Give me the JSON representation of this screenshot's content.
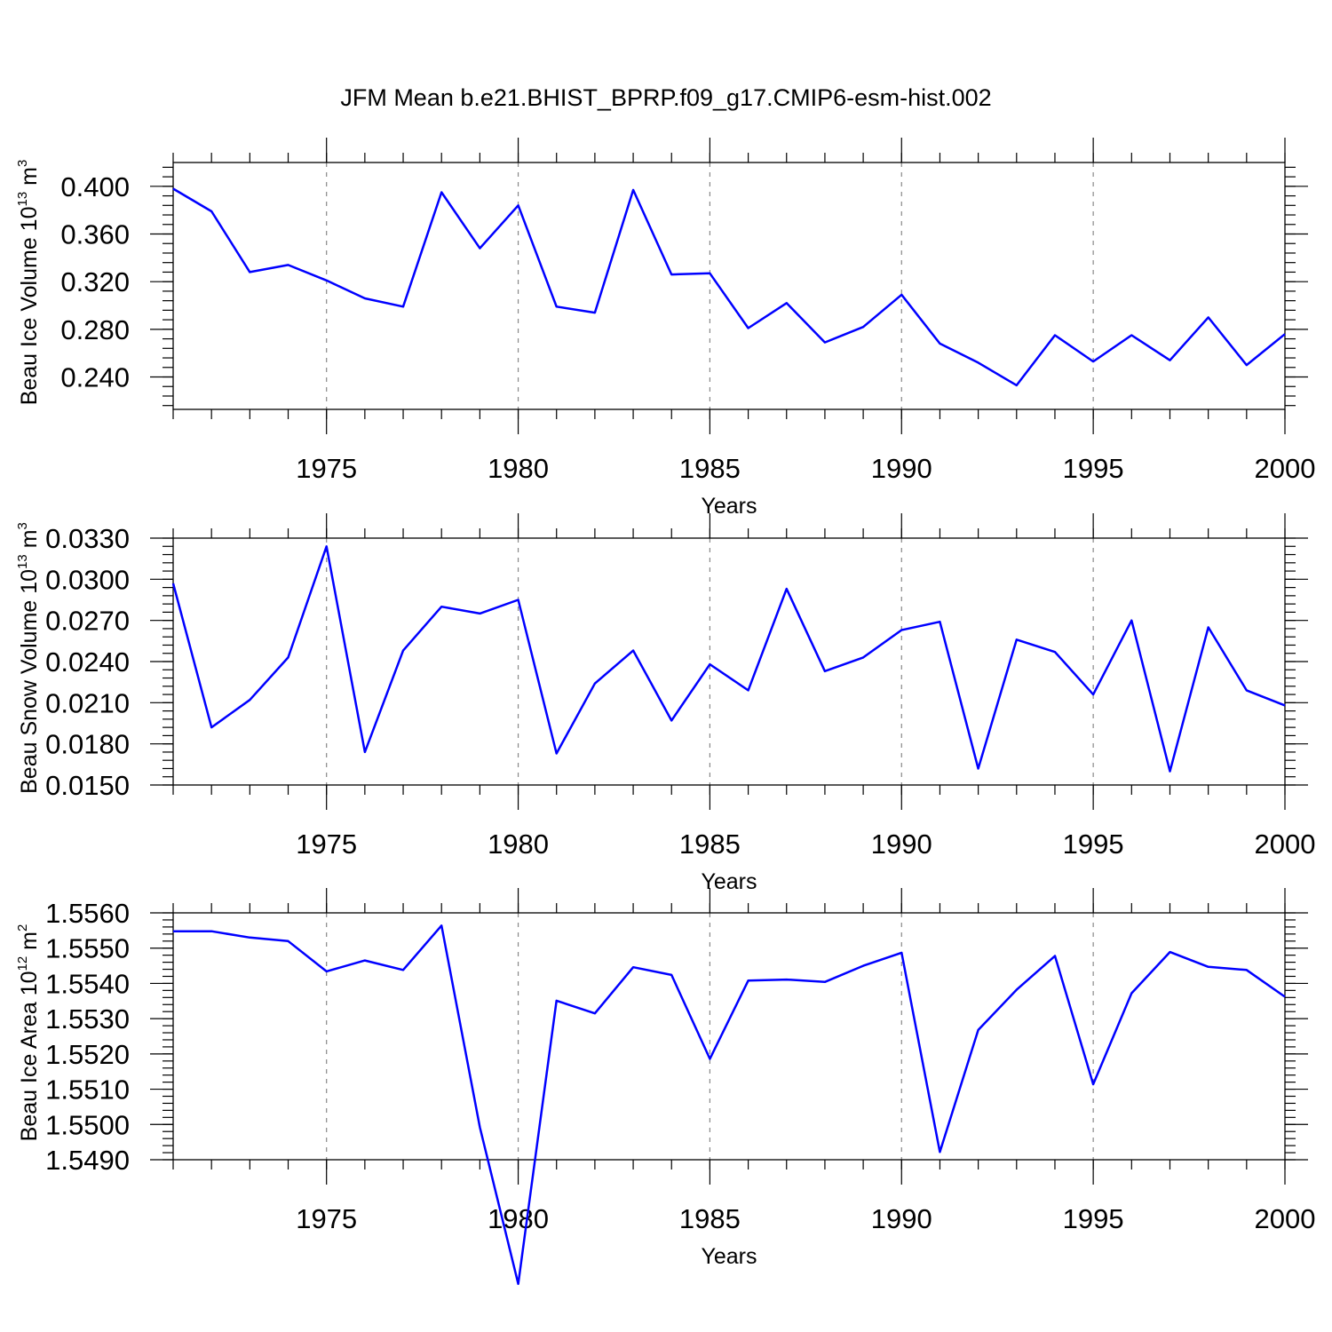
{
  "figure_title": "JFM Mean b.e21.BHIST_BPRP.f09_g17.CMIP6-esm-hist.002",
  "colors": {
    "line": "#0000ff",
    "frame": "#000000",
    "grid": "#888888"
  },
  "chart_data": [
    {
      "type": "line",
      "title": "JFM Mean b.e21.BHIST_BPRP.f09_g17.CMIP6-esm-hist.002",
      "ylabel_main": "Beau Ice Volume 10",
      "ylabel_exp": "13",
      "ylabel_unit": " m",
      "ylabel_unit_exp": "3",
      "xlabel": "Years",
      "xlim": [
        1971,
        2000
      ],
      "ylim": [
        0.2128,
        0.42
      ],
      "grid": "x-major-dashed",
      "yticks": [
        0.24,
        0.28,
        0.32,
        0.36,
        0.4
      ],
      "ytick_labels": [
        "0.240",
        "0.280",
        "0.320",
        "0.360",
        "0.400"
      ],
      "xticks": [
        1975,
        1980,
        1985,
        1990,
        1995,
        2000
      ],
      "xtick_labels": [
        "1975",
        "1980",
        "1985",
        "1990",
        "1995",
        "2000"
      ],
      "x": [
        1971,
        1972,
        1973,
        1974,
        1975,
        1976,
        1977,
        1978,
        1979,
        1980,
        1981,
        1982,
        1983,
        1984,
        1985,
        1986,
        1987,
        1988,
        1989,
        1990,
        1991,
        1992,
        1993,
        1994,
        1995,
        1996,
        1997,
        1998,
        1999,
        2000
      ],
      "values": [
        0.398,
        0.379,
        0.328,
        0.334,
        0.321,
        0.306,
        0.299,
        0.395,
        0.348,
        0.384,
        0.299,
        0.294,
        0.397,
        0.326,
        0.327,
        0.281,
        0.302,
        0.269,
        0.282,
        0.309,
        0.268,
        0.252,
        0.233,
        0.275,
        0.253,
        0.275,
        0.254,
        0.29,
        0.25,
        0.276
      ]
    },
    {
      "type": "line",
      "ylabel_main": "Beau Snow Volume 10",
      "ylabel_exp": "13",
      "ylabel_unit": " m",
      "ylabel_unit_exp": "3",
      "xlabel": "Years",
      "xlim": [
        1971,
        2000
      ],
      "ylim": [
        0.015,
        0.033
      ],
      "grid": "x-major-dashed",
      "yticks": [
        0.015,
        0.018,
        0.021,
        0.024,
        0.027,
        0.03,
        0.033
      ],
      "ytick_labels": [
        "0.0150",
        "0.0180",
        "0.0210",
        "0.0240",
        "0.0270",
        "0.0300",
        "0.0330"
      ],
      "xticks": [
        1975,
        1980,
        1985,
        1990,
        1995,
        2000
      ],
      "xtick_labels": [
        "1975",
        "1980",
        "1985",
        "1990",
        "1995",
        "2000"
      ],
      "x": [
        1971,
        1972,
        1973,
        1974,
        1975,
        1976,
        1977,
        1978,
        1979,
        1980,
        1981,
        1982,
        1983,
        1984,
        1985,
        1986,
        1987,
        1988,
        1989,
        1990,
        1991,
        1992,
        1993,
        1994,
        1995,
        1996,
        1997,
        1998,
        1999,
        2000
      ],
      "values": [
        0.0297,
        0.0192,
        0.0212,
        0.0243,
        0.0324,
        0.0174,
        0.0248,
        0.028,
        0.0275,
        0.0285,
        0.0173,
        0.0224,
        0.0248,
        0.0197,
        0.0238,
        0.0219,
        0.0293,
        0.0233,
        0.0243,
        0.0263,
        0.0269,
        0.0162,
        0.0256,
        0.0247,
        0.0216,
        0.027,
        0.016,
        0.0265,
        0.0219,
        0.0208
      ]
    },
    {
      "type": "line",
      "ylabel_main": "Beau Ice Area 10",
      "ylabel_exp": "12",
      "ylabel_unit": " m",
      "ylabel_unit_exp": "2",
      "xlabel": "Years",
      "xlim": [
        1971,
        2000
      ],
      "ylim": [
        1.549,
        1.556
      ],
      "grid": "x-major-dashed",
      "yticks": [
        1.549,
        1.55,
        1.551,
        1.552,
        1.553,
        1.554,
        1.555,
        1.556
      ],
      "ytick_labels": [
        "1.5490",
        "1.5500",
        "1.5510",
        "1.5520",
        "1.5530",
        "1.5540",
        "1.5550",
        "1.5560"
      ],
      "xticks": [
        1975,
        1980,
        1985,
        1990,
        1995,
        2000
      ],
      "xtick_labels": [
        "1975",
        "1980",
        "1985",
        "1990",
        "1995",
        "2000"
      ],
      "x": [
        1971,
        1972,
        1973,
        1974,
        1975,
        1976,
        1977,
        1978,
        1979,
        1980,
        1981,
        1982,
        1983,
        1984,
        1985,
        1986,
        1987,
        1988,
        1989,
        1990,
        1991,
        1992,
        1993,
        1994,
        1995,
        1996,
        1997,
        1998,
        1999,
        2000
      ],
      "values": [
        1.55548,
        1.55548,
        1.5553,
        1.5552,
        1.55434,
        1.55465,
        1.55438,
        1.55564,
        1.54992,
        1.54548,
        1.55351,
        1.55315,
        1.55446,
        1.55424,
        1.55186,
        1.55408,
        1.55411,
        1.55404,
        1.5545,
        1.55487,
        1.54922,
        1.55268,
        1.55382,
        1.55478,
        1.55114,
        1.55372,
        1.55489,
        1.55447,
        1.55438,
        1.55362
      ]
    }
  ]
}
